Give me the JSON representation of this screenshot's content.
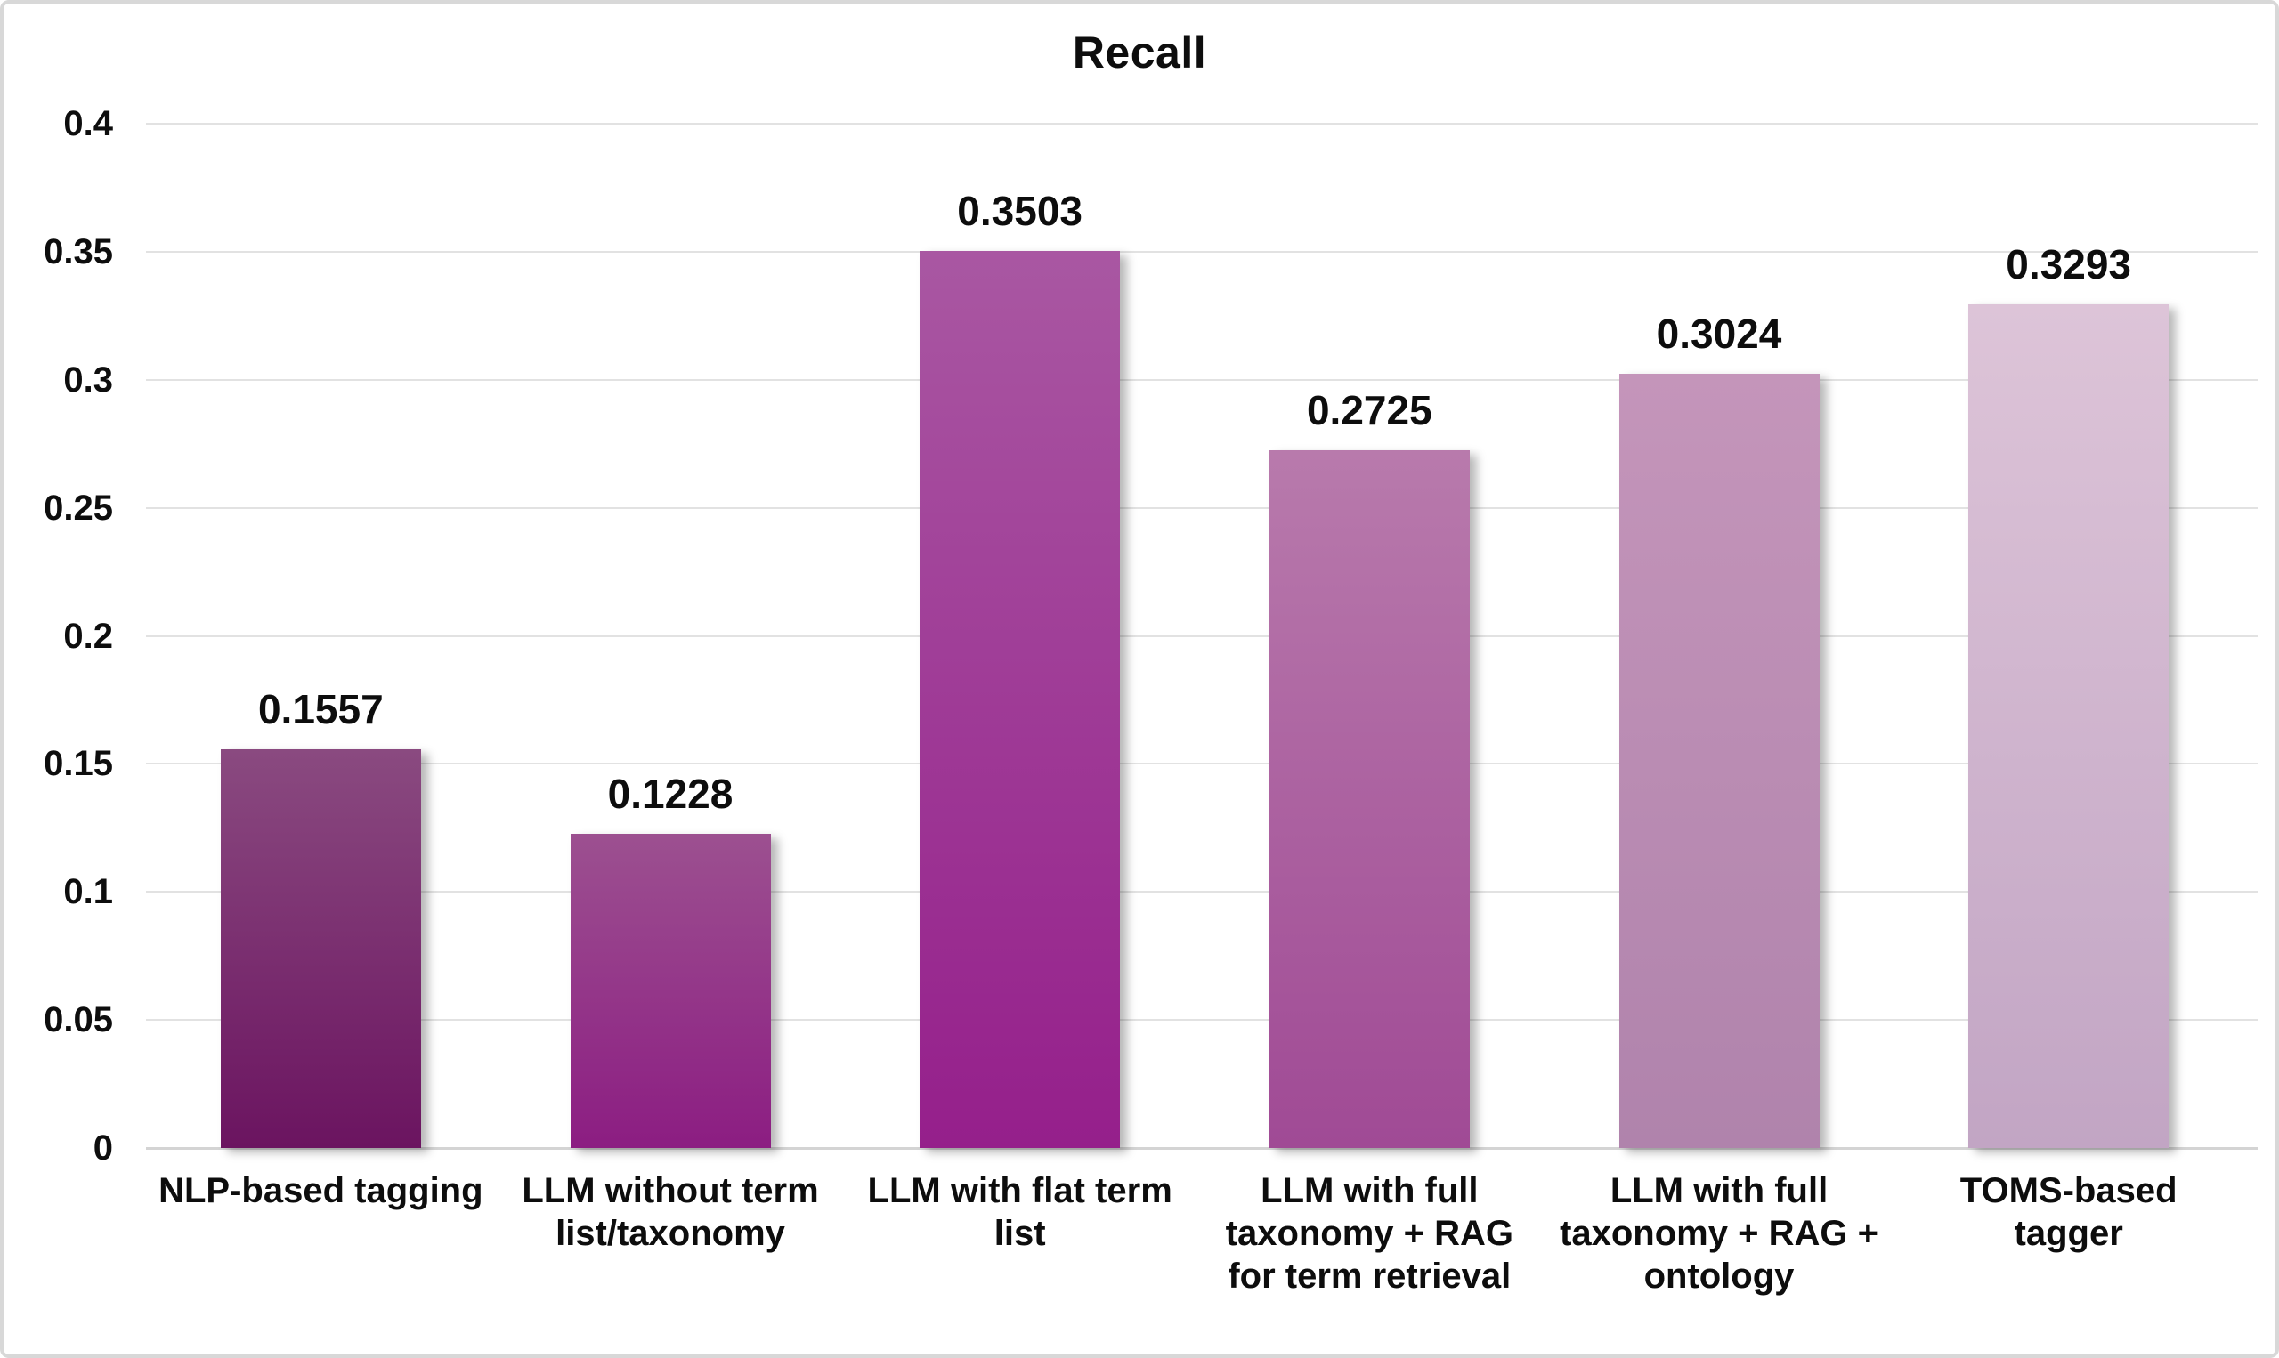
{
  "title": "Recall",
  "chart_data": {
    "type": "bar",
    "title": "Recall",
    "xlabel": "",
    "ylabel": "",
    "ylim": [
      0,
      0.4
    ],
    "grid": true,
    "legend": false,
    "categories": [
      "NLP-based tagging",
      "LLM without term list/taxonomy",
      "LLM with flat term list",
      "LLM with full taxonomy + RAG for term retrieval",
      "LLM with full taxonomy + RAG + ontology",
      "TOMS-based tagger"
    ],
    "category_lines": [
      [
        "NLP-based tagging"
      ],
      [
        "LLM without term",
        "list/taxonomy"
      ],
      [
        "LLM with flat term",
        "list"
      ],
      [
        "LLM with full",
        "taxonomy + RAG",
        "for term retrieval"
      ],
      [
        "LLM with full",
        "taxonomy + RAG +",
        "ontology"
      ],
      [
        "TOMS-based",
        "tagger"
      ]
    ],
    "values": [
      0.1557,
      0.1228,
      0.3503,
      0.2725,
      0.3024,
      0.3293
    ],
    "value_labels": [
      "0.1557",
      "0.1228",
      "0.3503",
      "0.2725",
      "0.3024",
      "0.3293"
    ],
    "y_ticks": [
      {
        "value": 0.4,
        "label": "0.4"
      },
      {
        "value": 0.35,
        "label": "0.35"
      },
      {
        "value": 0.3,
        "label": "0.3"
      },
      {
        "value": 0.25,
        "label": "0.25"
      },
      {
        "value": 0.2,
        "label": "0.2"
      },
      {
        "value": 0.15,
        "label": "0.15"
      },
      {
        "value": 0.1,
        "label": "0.1"
      },
      {
        "value": 0.05,
        "label": "0.05"
      },
      {
        "value": 0,
        "label": "0"
      }
    ],
    "bar_colors": [
      {
        "top": "#8a4a80",
        "bottom": "#6b1460"
      },
      {
        "top": "#9c5090",
        "bottom": "#8c1d82"
      },
      {
        "top": "#a957a2",
        "bottom": "#951f8b"
      },
      {
        "top": "#b87aac",
        "bottom": "#a04a95"
      },
      {
        "top": "#c495ba",
        "bottom": "#b083ac"
      },
      {
        "top": "#ddc4d8",
        "bottom": "#c2a5c4"
      }
    ]
  },
  "colors": {
    "background": "#ffffff",
    "border": "#d8d8d8",
    "gridline": "#e2e2e2",
    "baseline": "#d4d4d4",
    "text": "#0d0d0d"
  }
}
